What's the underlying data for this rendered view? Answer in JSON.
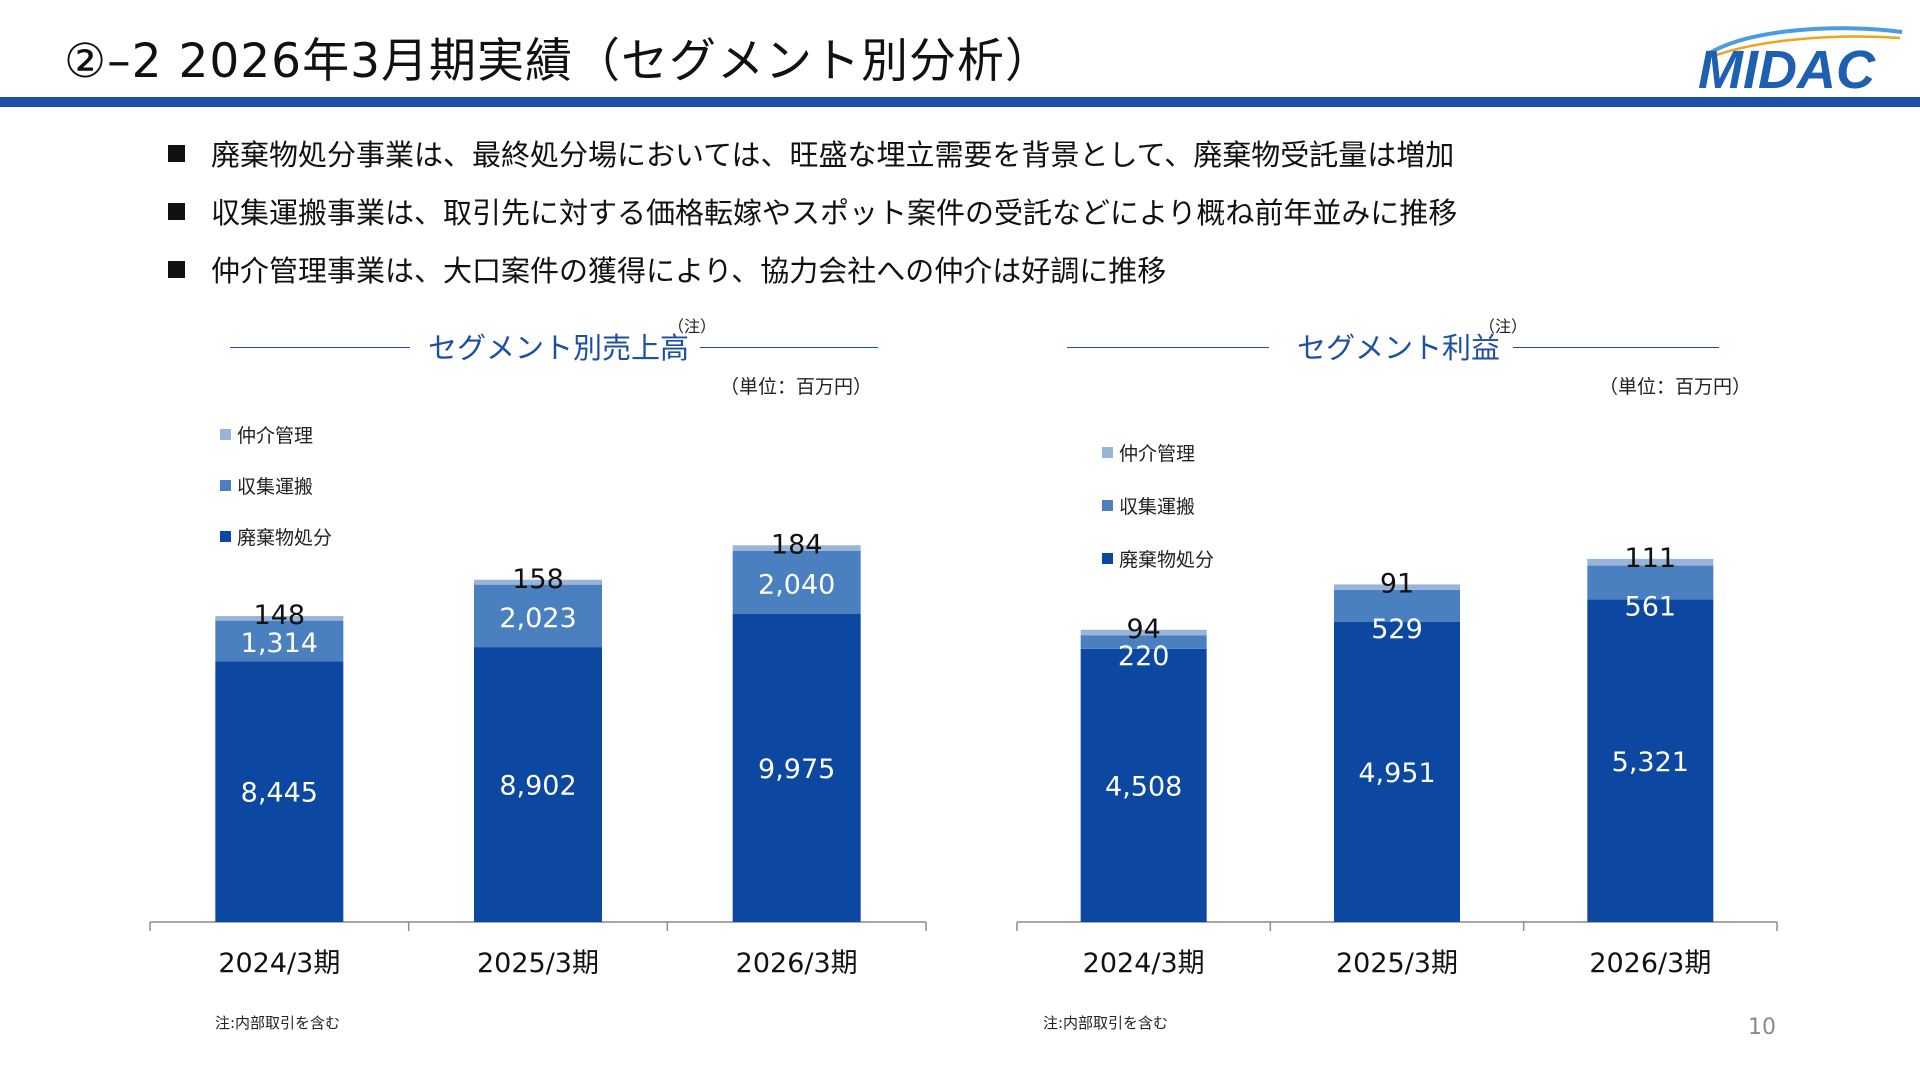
{
  "header": {
    "title": "②–2 2026年3月期実績（セグメント別分析）",
    "logo_text": "MIDAC",
    "accent_color": "#1d4fa3"
  },
  "bullets": [
    "廃棄物処分事業は、最終処分場においては、旺盛な埋立需要を背景として、廃棄物受託量は増加",
    "収集運搬事業は、取引先に対する価格転嫁やスポット案件の受託などにより概ね前年並みに推移",
    "仲介管理事業は、大口案件の獲得により、協力会社への仲介は好調に推移"
  ],
  "chart_data": [
    {
      "type": "bar",
      "stacked": true,
      "title": "セグメント別売上高",
      "title_note": "（注）",
      "unit": "（単位：百万円）",
      "categories": [
        "2024/3期",
        "2025/3期",
        "2026/3期"
      ],
      "series": [
        {
          "name": "廃棄物処分",
          "color": "#0c47a1",
          "values": [
            8445,
            8902,
            9975
          ]
        },
        {
          "name": "収集運搬",
          "color": "#4a7fc0",
          "values": [
            1314,
            2023,
            2040
          ]
        },
        {
          "name": "仲介管理",
          "color": "#99b4d9",
          "values": [
            148,
            158,
            184
          ]
        }
      ],
      "ylim": [
        0,
        12500
      ],
      "legend": "top-left",
      "footnote": "注:内部取引を含む"
    },
    {
      "type": "bar",
      "stacked": true,
      "title": "セグメント利益",
      "title_note": "（注）",
      "unit": "（単位：百万円）",
      "categories": [
        "2024/3期",
        "2025/3期",
        "2026/3期"
      ],
      "series": [
        {
          "name": "廃棄物処分",
          "color": "#0c47a1",
          "values": [
            4508,
            4951,
            5321
          ]
        },
        {
          "name": "収集運搬",
          "color": "#4a7fc0",
          "values": [
            220,
            529,
            561
          ]
        },
        {
          "name": "仲介管理",
          "color": "#99b4d9",
          "values": [
            94,
            91,
            111
          ]
        }
      ],
      "ylim": [
        0,
        6370
      ],
      "legend": "top-left",
      "footnote": "注:内部取引を含む"
    }
  ],
  "page_number": "10"
}
